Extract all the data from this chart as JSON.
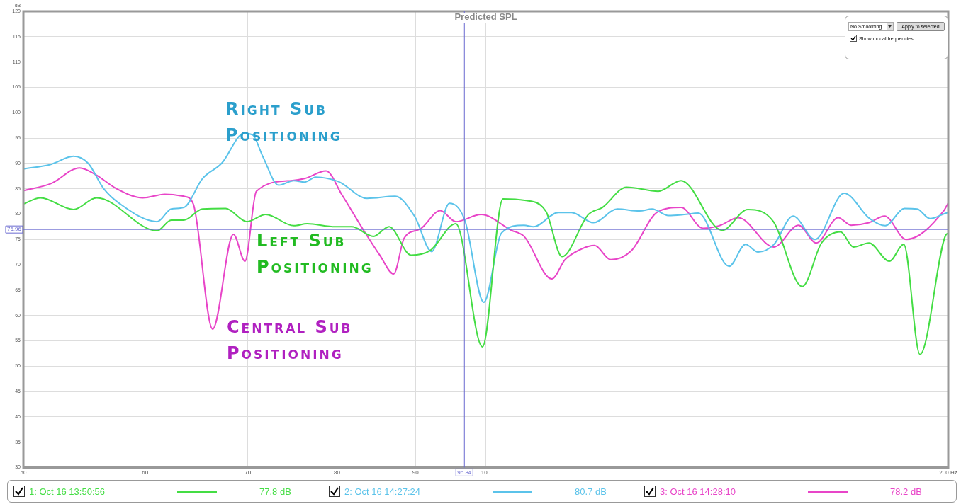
{
  "chart_data": {
    "type": "line",
    "title": "Predicted SPL",
    "ylabel": "dB",
    "log": "x",
    "grid": true,
    "legend": "bottom",
    "marker": "none",
    "xlim": [
      50,
      200
    ],
    "xticks": [
      50,
      60,
      70,
      80,
      90,
      100,
      {
        "value": 200,
        "label": "200 Hz"
      }
    ],
    "ylim": [
      30,
      120
    ],
    "yticks": [
      30,
      35,
      40,
      45,
      50,
      55,
      60,
      65,
      70,
      75,
      80,
      85,
      90,
      95,
      100,
      105,
      110,
      115,
      120
    ],
    "ref_lines": [
      {
        "axis": "x",
        "value": 96.84,
        "label": "96.84",
        "color": "#6a6ad0"
      },
      {
        "axis": "y",
        "value": 76.96,
        "label": "76.96",
        "color": "#6a6ad0"
      }
    ],
    "annotations": [
      "77.8 dB",
      "80.7 dB",
      "78.2 dB",
      "Left Sub Positioning",
      "Right Sub Positioning",
      "Central Sub Positioning",
      "No Smoothing",
      "Apply to selected",
      "Show modal frequencies"
    ],
    "series": [
      {
        "name": "1: Oct 16 13:50:56",
        "color": "#44dd44",
        "x": [
          50,
          51.3,
          53.9,
          55.8,
          61.1,
          62.4,
          63.6,
          65.4,
          67.7,
          69.9,
          71.9,
          75.0,
          76.5,
          79.8,
          81.8,
          84.5,
          86.5,
          89.4,
          92.0,
          95.6,
          99.5,
          102.6,
          106.0,
          109.4,
          112.1,
          116.6,
          119.1,
          123.5,
          129.5,
          134.0,
          142.5,
          148.1,
          153.9,
          160.7,
          165.4,
          170.2,
          173.5,
          177.6,
          183.1,
          187.1,
          191.7,
          199.2,
          200
        ],
        "values": [
          82.0,
          83.2,
          80.9,
          83.2,
          76.7,
          78.8,
          78.8,
          81.0,
          81.1,
          78.5,
          79.9,
          77.7,
          78.1,
          77.5,
          77.5,
          75.6,
          77.5,
          71.9,
          72.8,
          78.1,
          53.8,
          83.0,
          82.7,
          80.6,
          71.6,
          79.9,
          81.3,
          85.3,
          84.5,
          86.6,
          76.8,
          80.9,
          78.5,
          65.7,
          74.3,
          76.5,
          73.5,
          74.3,
          70.7,
          74.0,
          52.3,
          75.8,
          76.2
        ]
      },
      {
        "name": "2: Oct 16 14:27:24",
        "color": "#5bc3ea",
        "x": [
          50,
          52.1,
          53.9,
          55.1,
          56.4,
          57.8,
          61.1,
          62.4,
          63.6,
          65.4,
          67.3,
          69.6,
          70.5,
          71.6,
          73.3,
          75.0,
          76.2,
          77.5,
          80.2,
          83.7,
          87.3,
          89.9,
          92.2,
          94.7,
          96.9,
          99.7,
          102.4,
          105.9,
          107.4,
          111.5,
          113.7,
          117.5,
          121.8,
          125.9,
          128.3,
          131.5,
          134.6,
          137.5,
          144.0,
          147.6,
          150.4,
          154.0,
          158.5,
          163.8,
          171.1,
          177.8,
          182.0,
          187.3,
          190.9,
          194.6,
          199.4,
          200
        ],
        "values": [
          88.9,
          89.8,
          91.4,
          90.0,
          85.0,
          82.0,
          78.5,
          81.0,
          81.3,
          87.0,
          90.0,
          95.9,
          95.6,
          91.3,
          85.7,
          86.6,
          86.3,
          87.3,
          86.4,
          83.1,
          83.5,
          79.5,
          72.6,
          82.1,
          78.8,
          62.6,
          76.3,
          77.8,
          77.5,
          80.3,
          80.3,
          78.3,
          81.0,
          80.6,
          81.0,
          79.7,
          79.9,
          80.2,
          69.7,
          74.0,
          72.5,
          74.0,
          79.6,
          75.0,
          84.1,
          79.1,
          77.7,
          81.1,
          81.0,
          79.1,
          80.2,
          80.3
        ]
      },
      {
        "name": "3: Oct 16 14:28:10",
        "color": "#e845c8",
        "x": [
          50,
          52.1,
          54.4,
          55.7,
          57.5,
          59.8,
          61.8,
          63.6,
          64.5,
          66.4,
          68.5,
          69.7,
          70.9,
          74.7,
          76.2,
          78.7,
          80.6,
          83.3,
          85.3,
          87.1,
          88.5,
          90.7,
          93.4,
          95.6,
          99.3,
          103.9,
          105.9,
          110.4,
          112.6,
          115.4,
          117.7,
          120.6,
          124.4,
          129.2,
          134.0,
          138.5,
          141.9,
          146.0,
          154.0,
          159.8,
          164.1,
          169.6,
          172.9,
          177.6,
          181.8,
          187.8,
          198.6,
          200
        ],
        "values": [
          84.6,
          86.0,
          89.1,
          87.8,
          85.0,
          83.2,
          83.9,
          83.5,
          82.0,
          57.3,
          76.0,
          70.7,
          84.5,
          86.6,
          87.0,
          88.5,
          83.8,
          76.7,
          71.9,
          68.2,
          75.3,
          77.1,
          80.7,
          78.5,
          79.9,
          76.8,
          75.6,
          67.2,
          71.0,
          73.1,
          73.8,
          71.0,
          72.8,
          80.3,
          81.3,
          77.2,
          77.7,
          79.3,
          73.5,
          77.8,
          74.3,
          79.3,
          77.8,
          78.3,
          79.6,
          75.0,
          80.6,
          82.2
        ]
      }
    ]
  }
}
